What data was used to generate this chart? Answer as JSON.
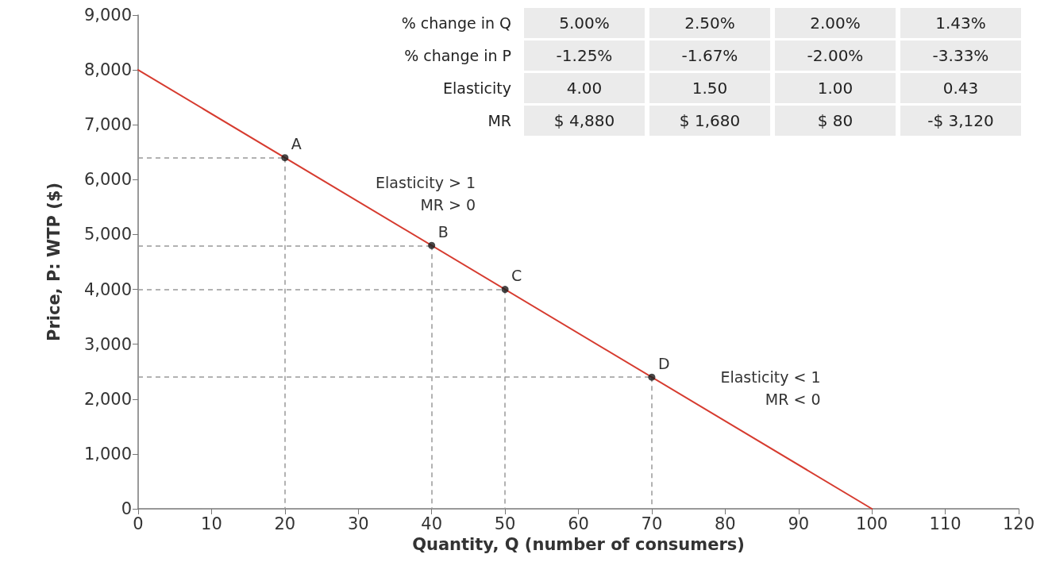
{
  "chart_data": {
    "type": "line",
    "xlabel": "Quantity, Q (number of consumers)",
    "ylabel": "Price, P: WTP ($)",
    "xlim": [
      0,
      120
    ],
    "xticks": [
      0,
      10,
      20,
      30,
      40,
      50,
      60,
      70,
      80,
      90,
      100,
      110,
      120
    ],
    "ylim": [
      0,
      9000
    ],
    "yticks": [
      0,
      {
        "value": 1000,
        "label": "1,000"
      },
      {
        "value": 2000,
        "label": "2,000"
      },
      {
        "value": 3000,
        "label": "3,000"
      },
      {
        "value": 4000,
        "label": "4,000"
      },
      {
        "value": 5000,
        "label": "5,000"
      },
      {
        "value": 6000,
        "label": "6,000"
      },
      {
        "value": 7000,
        "label": "7,000"
      },
      {
        "value": 8000,
        "label": "8,000"
      },
      {
        "value": 9000,
        "label": "9,000"
      }
    ],
    "marker": "none",
    "line_style": "solid",
    "series": [
      {
        "color": "#d63b2f",
        "x": [
          0,
          100
        ],
        "values": [
          8000,
          0
        ]
      },
      {
        "type": "scatter",
        "color": "#1a1a1a",
        "marker": "circle",
        "x": [
          20,
          40,
          50,
          70
        ],
        "values": [
          6400,
          4800,
          4000,
          2400
        ]
      }
    ],
    "annotations": [
      "% change in Q",
      "5.00%",
      "2.50%",
      "2.00%",
      "1.43%",
      "% change in P",
      "-1.25%",
      "-1.67%",
      "-2.00%",
      "-3.33%",
      "Elasticity",
      "4.00",
      "1.50",
      "1.00",
      "0.43",
      "MR",
      "$ 4,880",
      "$ 1,680",
      "$ 80",
      "-$ 3,120",
      "Elasticity > 1\nMR > 0",
      "Elasticity < 1\nMR < 0",
      {
        "text": "A",
        "x": 20,
        "y": 6400
      },
      {
        "text": "B",
        "x": 40,
        "y": 4800
      },
      {
        "text": "C",
        "x": 50,
        "y": 4000
      },
      {
        "text": "D",
        "x": 70,
        "y": 2400
      }
    ]
  }
}
